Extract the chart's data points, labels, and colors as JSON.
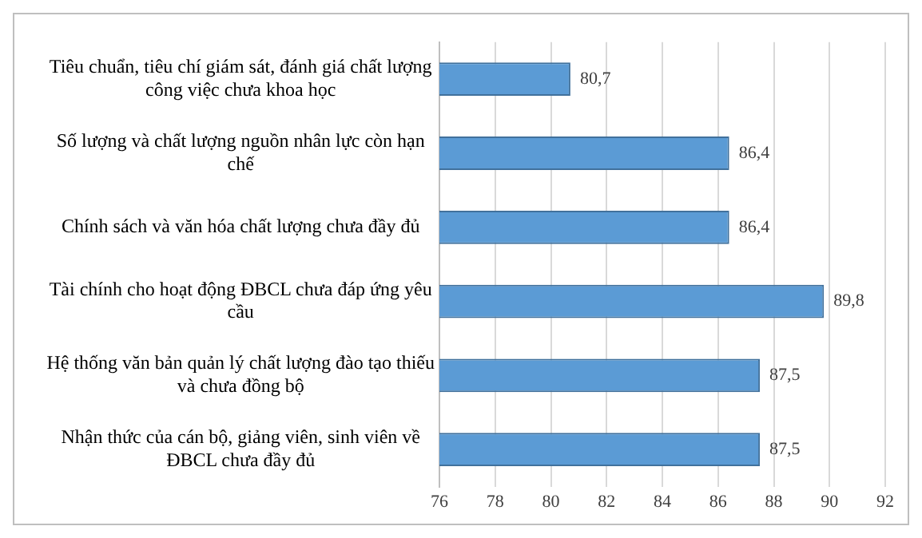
{
  "chart_data": {
    "type": "bar",
    "orientation": "horizontal",
    "categories": [
      "Tiêu chuẩn, tiêu chí giám sát, đánh giá chất lượng công việc chưa khoa học",
      "Số lượng và chất lượng nguồn nhân lực còn hạn chế",
      "Chính sách và văn hóa chất lượng chưa đầy đủ",
      "Tài chính cho hoạt động ĐBCL chưa đáp ứng yêu cầu",
      "Hệ thống văn bản quản lý chất lượng đào tạo thiếu và chưa đồng bộ",
      "Nhận thức của cán bộ, giảng viên, sinh viên về ĐBCL chưa đầy đủ"
    ],
    "values": [
      80.7,
      86.4,
      86.4,
      89.8,
      87.5,
      87.5
    ],
    "value_labels": [
      "80,7",
      "86,4",
      "86,4",
      "89,8",
      "87,5",
      "87,5"
    ],
    "color": "#5b9bd5",
    "xlim": [
      76,
      92
    ],
    "xticks": [
      76,
      78,
      80,
      82,
      84,
      86,
      88,
      90,
      92
    ],
    "grid": "x",
    "legend": false
  }
}
